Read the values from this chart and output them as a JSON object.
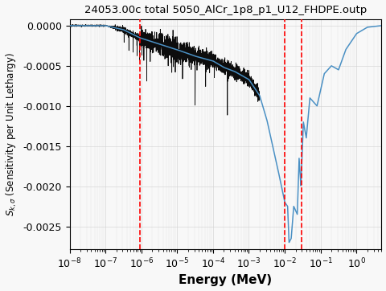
{
  "title": "24053.00c total 5050_AlCr_1p8_p1_U12_FHDPE.outp",
  "xlabel": "Energy (MeV)",
  "ylabel": "$S_{k,\\sigma}$ (Sensitivity per Unit Lethargy)",
  "ylim": [
    -0.00278,
    8e-05
  ],
  "yticks": [
    0.0,
    -0.0005,
    -0.001,
    -0.0015,
    -0.002,
    -0.0025
  ],
  "xlim": [
    1e-08,
    5.0
  ],
  "vlines": [
    9e-07,
    0.01,
    0.03
  ],
  "vline_color": "red",
  "vline_style": "--",
  "blue_color": "#4a90c4",
  "black_color": "#000000",
  "background_color": "#f8f8f8",
  "grid_color": "#d0d0d0",
  "title_fontsize": 9.5,
  "label_fontsize": 11,
  "tick_fontsize": 9
}
